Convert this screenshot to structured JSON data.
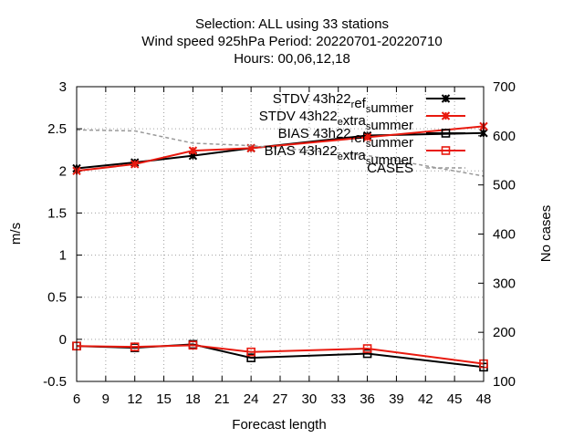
{
  "title_lines": [
    "Selection: ALL using     33 stations",
    "Wind speed 925hPa   Period: 20220701-20220710",
    "Hours:  00,06,12,18"
  ],
  "chart_data": {
    "type": "line",
    "xlabel": "Forecast length",
    "ylabel": "m/s",
    "y2label": "No cases",
    "xlim": [
      6,
      48
    ],
    "ylim": [
      -0.5,
      3
    ],
    "y2lim": [
      100,
      700
    ],
    "xticks": [
      6,
      9,
      12,
      15,
      18,
      21,
      24,
      27,
      30,
      33,
      36,
      39,
      42,
      45,
      48
    ],
    "yticks": [
      -0.5,
      0,
      0.5,
      1,
      1.5,
      2,
      2.5,
      3
    ],
    "ytick_labels": [
      "-0.5",
      "0",
      "0.5",
      "1",
      "1.5",
      "2",
      "2.5",
      "3"
    ],
    "y2ticks": [
      100,
      200,
      300,
      400,
      500,
      600,
      700
    ],
    "grid": true,
    "legend_position": "top-right",
    "x": [
      6,
      12,
      18,
      24,
      36,
      48
    ],
    "series": [
      {
        "name": "STDV 43h22_ref_summer",
        "legend_parts": [
          [
            "STDV 43h22",
            "n"
          ],
          [
            "r",
            "sub"
          ],
          [
            "ef",
            "n"
          ],
          [
            "s",
            "sub"
          ],
          [
            "ummer",
            "n"
          ]
        ],
        "values": [
          2.03,
          2.1,
          2.18,
          2.27,
          2.42,
          2.45
        ],
        "color": "#000000",
        "marker": "x",
        "axis": "y1"
      },
      {
        "name": "STDV 43h22_extra_summer",
        "legend_parts": [
          [
            "STDV 43h22",
            "n"
          ],
          [
            "e",
            "sub"
          ],
          [
            "xtra",
            "n"
          ],
          [
            "s",
            "sub"
          ],
          [
            "ummer",
            "n"
          ]
        ],
        "values": [
          2.0,
          2.08,
          2.24,
          2.27,
          2.4,
          2.53
        ],
        "color": "#e8190e",
        "marker": "x",
        "axis": "y1"
      },
      {
        "name": "BIAS 43h22_ref_summer",
        "legend_parts": [
          [
            "BIAS 43h22",
            "n"
          ],
          [
            "r",
            "sub"
          ],
          [
            "ef",
            "n"
          ],
          [
            "s",
            "sub"
          ],
          [
            "ummer",
            "n"
          ]
        ],
        "values": [
          -0.08,
          -0.1,
          -0.06,
          -0.22,
          -0.17,
          -0.33
        ],
        "color": "#000000",
        "marker": "square",
        "axis": "y1"
      },
      {
        "name": "BIAS 43h22_extra_summer",
        "legend_parts": [
          [
            "BIAS 43h22",
            "n"
          ],
          [
            "e",
            "sub"
          ],
          [
            "xtra",
            "n"
          ],
          [
            "s",
            "sub"
          ],
          [
            "ummer",
            "n"
          ]
        ],
        "values": [
          -0.08,
          -0.09,
          -0.07,
          -0.15,
          -0.11,
          -0.29
        ],
        "color": "#e8190e",
        "marker": "square",
        "axis": "y1"
      },
      {
        "name": "CASES",
        "legend_parts": [
          [
            "CASES",
            "n"
          ]
        ],
        "x": [
          6,
          12,
          18,
          24,
          36,
          48
        ],
        "values": [
          612,
          610,
          585,
          580,
          560,
          518
        ],
        "color": "#999999",
        "marker": "none",
        "dash": true,
        "axis": "y2"
      }
    ]
  }
}
